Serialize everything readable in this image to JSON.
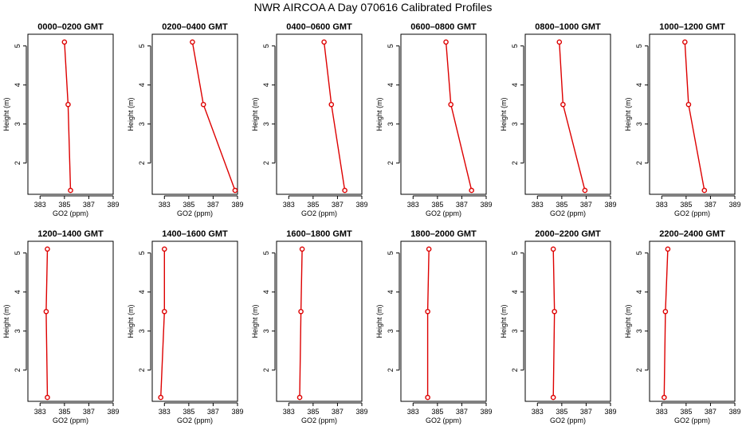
{
  "title": "NWR AIRCOA A  Day 070616  Calibrated Profiles",
  "colors": {
    "series": "#dd0000",
    "axis": "#000000"
  },
  "chart_data": [
    {
      "type": "line",
      "title": "0000–0200 GMT",
      "xlabel": "GO2 (ppm)",
      "ylabel": "Height (m)",
      "xlim": [
        382,
        389
      ],
      "ylim": [
        1.2,
        5.3
      ],
      "xticks": [
        383,
        385,
        387,
        389
      ],
      "yticks": [
        2,
        3,
        4,
        5
      ],
      "points": [
        {
          "x": 385.0,
          "y": 5.1
        },
        {
          "x": 385.3,
          "y": 3.5
        },
        {
          "x": 385.5,
          "y": 1.3
        }
      ]
    },
    {
      "type": "line",
      "title": "0200–0400 GMT",
      "xlabel": "GO2 (ppm)",
      "ylabel": "Height (m)",
      "xlim": [
        382,
        389
      ],
      "ylim": [
        1.2,
        5.3
      ],
      "xticks": [
        383,
        385,
        387,
        389
      ],
      "yticks": [
        2,
        3,
        4,
        5
      ],
      "points": [
        {
          "x": 385.3,
          "y": 5.1
        },
        {
          "x": 386.2,
          "y": 3.5
        },
        {
          "x": 388.8,
          "y": 1.3
        }
      ]
    },
    {
      "type": "line",
      "title": "0400–0600 GMT",
      "xlabel": "GO2 (ppm)",
      "ylabel": "Height (m)",
      "xlim": [
        382,
        389
      ],
      "ylim": [
        1.2,
        5.3
      ],
      "xticks": [
        383,
        385,
        387,
        389
      ],
      "yticks": [
        2,
        3,
        4,
        5
      ],
      "points": [
        {
          "x": 385.9,
          "y": 5.1
        },
        {
          "x": 386.5,
          "y": 3.5
        },
        {
          "x": 387.6,
          "y": 1.3
        }
      ]
    },
    {
      "type": "line",
      "title": "0600–0800 GMT",
      "xlabel": "GO2 (ppm)",
      "ylabel": "Height (m)",
      "xlim": [
        382,
        389
      ],
      "ylim": [
        1.2,
        5.3
      ],
      "xticks": [
        383,
        385,
        387,
        389
      ],
      "yticks": [
        2,
        3,
        4,
        5
      ],
      "points": [
        {
          "x": 385.7,
          "y": 5.1
        },
        {
          "x": 386.1,
          "y": 3.5
        },
        {
          "x": 387.8,
          "y": 1.3
        }
      ]
    },
    {
      "type": "line",
      "title": "0800–1000 GMT",
      "xlabel": "GO2 (ppm)",
      "ylabel": "Height (m)",
      "xlim": [
        382,
        389
      ],
      "ylim": [
        1.2,
        5.3
      ],
      "xticks": [
        383,
        385,
        387,
        389
      ],
      "yticks": [
        2,
        3,
        4,
        5
      ],
      "points": [
        {
          "x": 384.8,
          "y": 5.1
        },
        {
          "x": 385.1,
          "y": 3.5
        },
        {
          "x": 386.9,
          "y": 1.3
        }
      ]
    },
    {
      "type": "line",
      "title": "1000–1200 GMT",
      "xlabel": "GO2 (ppm)",
      "ylabel": "Height (m)",
      "xlim": [
        382,
        389
      ],
      "ylim": [
        1.2,
        5.3
      ],
      "xticks": [
        383,
        385,
        387,
        389
      ],
      "yticks": [
        2,
        3,
        4,
        5
      ],
      "points": [
        {
          "x": 384.9,
          "y": 5.1
        },
        {
          "x": 385.2,
          "y": 3.5
        },
        {
          "x": 386.5,
          "y": 1.3
        }
      ]
    },
    {
      "type": "line",
      "title": "1200–1400 GMT",
      "xlabel": "GO2 (ppm)",
      "ylabel": "Height (m)",
      "xlim": [
        382,
        389
      ],
      "ylim": [
        1.2,
        5.3
      ],
      "xticks": [
        383,
        385,
        387,
        389
      ],
      "yticks": [
        2,
        3,
        4,
        5
      ],
      "points": [
        {
          "x": 383.6,
          "y": 5.1
        },
        {
          "x": 383.5,
          "y": 3.5
        },
        {
          "x": 383.6,
          "y": 1.3
        }
      ]
    },
    {
      "type": "line",
      "title": "1400–1600 GMT",
      "xlabel": "GO2 (ppm)",
      "ylabel": "Height (m)",
      "xlim": [
        382,
        389
      ],
      "ylim": [
        1.2,
        5.3
      ],
      "xticks": [
        383,
        385,
        387,
        389
      ],
      "yticks": [
        2,
        3,
        4,
        5
      ],
      "points": [
        {
          "x": 383.0,
          "y": 5.1
        },
        {
          "x": 383.0,
          "y": 3.5
        },
        {
          "x": 382.7,
          "y": 1.3
        }
      ]
    },
    {
      "type": "line",
      "title": "1600–1800 GMT",
      "xlabel": "GO2 (ppm)",
      "ylabel": "Height (m)",
      "xlim": [
        382,
        389
      ],
      "ylim": [
        1.2,
        5.3
      ],
      "xticks": [
        383,
        385,
        387,
        389
      ],
      "yticks": [
        2,
        3,
        4,
        5
      ],
      "points": [
        {
          "x": 384.1,
          "y": 5.1
        },
        {
          "x": 384.0,
          "y": 3.5
        },
        {
          "x": 383.9,
          "y": 1.3
        }
      ]
    },
    {
      "type": "line",
      "title": "1800–2000 GMT",
      "xlabel": "GO2 (ppm)",
      "ylabel": "Height (m)",
      "xlim": [
        382,
        389
      ],
      "ylim": [
        1.2,
        5.3
      ],
      "xticks": [
        383,
        385,
        387,
        389
      ],
      "yticks": [
        2,
        3,
        4,
        5
      ],
      "points": [
        {
          "x": 384.3,
          "y": 5.1
        },
        {
          "x": 384.2,
          "y": 3.5
        },
        {
          "x": 384.2,
          "y": 1.3
        }
      ]
    },
    {
      "type": "line",
      "title": "2000–2200 GMT",
      "xlabel": "GO2 (ppm)",
      "ylabel": "Height (m)",
      "xlim": [
        382,
        389
      ],
      "ylim": [
        1.2,
        5.3
      ],
      "xticks": [
        383,
        385,
        387,
        389
      ],
      "yticks": [
        2,
        3,
        4,
        5
      ],
      "points": [
        {
          "x": 384.3,
          "y": 5.1
        },
        {
          "x": 384.4,
          "y": 3.5
        },
        {
          "x": 384.3,
          "y": 1.3
        }
      ]
    },
    {
      "type": "line",
      "title": "2200–2400 GMT",
      "xlabel": "GO2 (ppm)",
      "ylabel": "Height (m)",
      "xlim": [
        382,
        389
      ],
      "ylim": [
        1.2,
        5.3
      ],
      "xticks": [
        383,
        385,
        387,
        389
      ],
      "yticks": [
        2,
        3,
        4,
        5
      ],
      "points": [
        {
          "x": 383.5,
          "y": 5.1
        },
        {
          "x": 383.3,
          "y": 3.5
        },
        {
          "x": 383.2,
          "y": 1.3
        }
      ]
    }
  ]
}
